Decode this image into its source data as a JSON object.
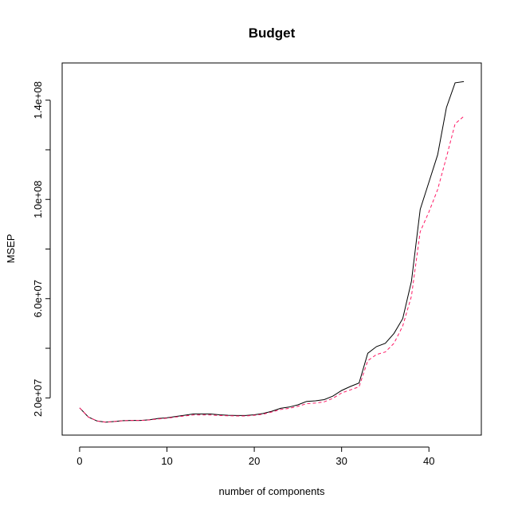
{
  "chart_data": {
    "type": "line",
    "title": "Budget",
    "xlabel": "number of components",
    "ylabel": "MSEP",
    "xlim": [
      -2,
      46
    ],
    "ylim": [
      5000000,
      155000000
    ],
    "x_ticks": [
      {
        "value": 0,
        "label": "0"
      },
      {
        "value": 10,
        "label": "10"
      },
      {
        "value": 20,
        "label": "20"
      },
      {
        "value": 30,
        "label": "30"
      },
      {
        "value": 40,
        "label": "40"
      }
    ],
    "y_ticks": [
      {
        "value": 20000000,
        "label": "2.0e+07"
      },
      {
        "value": 40000000,
        "label": ""
      },
      {
        "value": 60000000,
        "label": "6.0e+07"
      },
      {
        "value": 80000000,
        "label": ""
      },
      {
        "value": 100000000,
        "label": "1.0e+08"
      },
      {
        "value": 120000000,
        "label": ""
      },
      {
        "value": 140000000,
        "label": "1.4e+08"
      }
    ],
    "legend": "none",
    "grid": false,
    "x": [
      0,
      1,
      2,
      3,
      4,
      5,
      6,
      7,
      8,
      9,
      10,
      11,
      12,
      13,
      14,
      15,
      16,
      17,
      18,
      19,
      20,
      21,
      22,
      23,
      24,
      25,
      26,
      27,
      28,
      29,
      30,
      31,
      32,
      33,
      34,
      35,
      36,
      37,
      38,
      39,
      40,
      41,
      42,
      43,
      44
    ],
    "series": [
      {
        "color": "#000000",
        "dash": "solid",
        "values": [
          16000000,
          12300000,
          10700000,
          10200000,
          10500000,
          10800000,
          10900000,
          10900000,
          11200000,
          11700000,
          12000000,
          12500000,
          13000000,
          13500000,
          13500000,
          13500000,
          13200000,
          13000000,
          12900000,
          12900000,
          13200000,
          13700000,
          14600000,
          15800000,
          16300000,
          17200000,
          18600000,
          18800000,
          19300000,
          20700000,
          23000000,
          24600000,
          26000000,
          38000000,
          40700000,
          42000000,
          46000000,
          52000000,
          67000000,
          96000000,
          107000000,
          118000000,
          137000000,
          147000000,
          147500000
        ]
      },
      {
        "color": "#ff1a66",
        "dash": "dashed",
        "values": [
          16000000,
          12300000,
          10700000,
          10200000,
          10500000,
          10800000,
          10900000,
          10900000,
          11100000,
          11500000,
          11800000,
          12300000,
          12700000,
          13100000,
          13100000,
          13100000,
          12900000,
          12800000,
          12700000,
          12700000,
          13000000,
          13400000,
          14300000,
          15300000,
          15800000,
          16600000,
          17700000,
          17900000,
          18400000,
          19800000,
          22000000,
          23200000,
          24500000,
          35000000,
          37500000,
          38500000,
          42000000,
          49000000,
          61000000,
          87000000,
          95000000,
          104000000,
          117000000,
          130500000,
          133500000
        ]
      }
    ]
  }
}
